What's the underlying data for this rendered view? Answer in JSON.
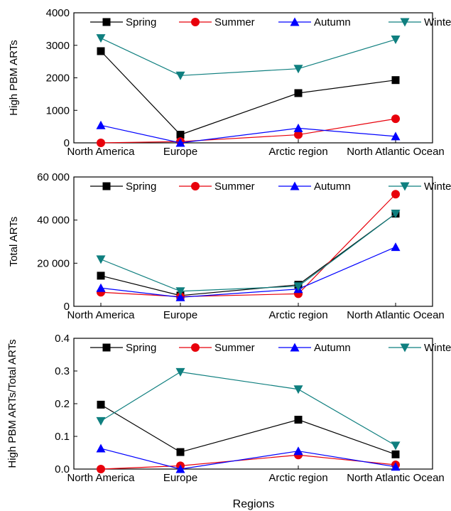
{
  "figure": {
    "xlabel": "Regions"
  },
  "colors": {
    "spring": "#000000",
    "summer": "#e8000b",
    "autumn": "#0000ff",
    "winter": "#0f7f7f"
  },
  "chart_data": [
    {
      "type": "line",
      "ylabel": "High PBM ARTs",
      "categories": [
        "North America",
        "Europe",
        "Arctic region",
        "North Atlantic Ocean"
      ],
      "ylim": [
        0,
        4000
      ],
      "yticks": [
        0,
        1000,
        2000,
        3000,
        4000
      ],
      "ytick_labels": [
        "0",
        "1000",
        "2000",
        "3000",
        "4000"
      ],
      "legend_placement": "top",
      "series": [
        {
          "name": "Spring",
          "marker": "square",
          "values": [
            2820,
            250,
            1530,
            1930
          ]
        },
        {
          "name": "Summer",
          "marker": "circle",
          "values": [
            0,
            40,
            250,
            740
          ]
        },
        {
          "name": "Autumn",
          "marker": "triangle-up",
          "values": [
            540,
            0,
            450,
            200
          ]
        },
        {
          "name": "Winter",
          "marker": "triangle-down",
          "values": [
            3220,
            2070,
            2280,
            3180
          ]
        }
      ]
    },
    {
      "type": "line",
      "ylabel": "Total ARTs",
      "categories": [
        "North America",
        "Europe",
        "Arctic region",
        "North Atlantic Ocean"
      ],
      "ylim": [
        0,
        60000
      ],
      "yticks": [
        0,
        20000,
        40000,
        60000
      ],
      "ytick_labels": [
        "0",
        "20 000",
        "40 000",
        "60 000"
      ],
      "legend_placement": "top",
      "series": [
        {
          "name": "Spring",
          "marker": "square",
          "values": [
            14200,
            5000,
            10000,
            43000
          ]
        },
        {
          "name": "Summer",
          "marker": "circle",
          "values": [
            6500,
            4500,
            5800,
            52000
          ]
        },
        {
          "name": "Autumn",
          "marker": "triangle-up",
          "values": [
            8500,
            4200,
            8000,
            27500
          ]
        },
        {
          "name": "Winter",
          "marker": "triangle-down",
          "values": [
            21800,
            7000,
            9300,
            43000
          ]
        }
      ]
    },
    {
      "type": "line",
      "ylabel": "High PBM ARTs/Total ARTs",
      "categories": [
        "North America",
        "Europe",
        "Arctic region",
        "North Atlantic Ocean"
      ],
      "ylim": [
        0,
        0.4
      ],
      "yticks": [
        0,
        0.1,
        0.2,
        0.3,
        0.4
      ],
      "ytick_labels": [
        "0.0",
        "0.1",
        "0.2",
        "0.3",
        "0.4"
      ],
      "legend_placement": "top",
      "series": [
        {
          "name": "Spring",
          "marker": "square",
          "values": [
            0.197,
            0.052,
            0.151,
            0.045
          ]
        },
        {
          "name": "Summer",
          "marker": "circle",
          "values": [
            0.0,
            0.01,
            0.043,
            0.013
          ]
        },
        {
          "name": "Autumn",
          "marker": "triangle-up",
          "values": [
            0.063,
            0.0,
            0.055,
            0.007
          ]
        },
        {
          "name": "Winter",
          "marker": "triangle-down",
          "values": [
            0.147,
            0.297,
            0.244,
            0.072
          ]
        }
      ]
    }
  ]
}
